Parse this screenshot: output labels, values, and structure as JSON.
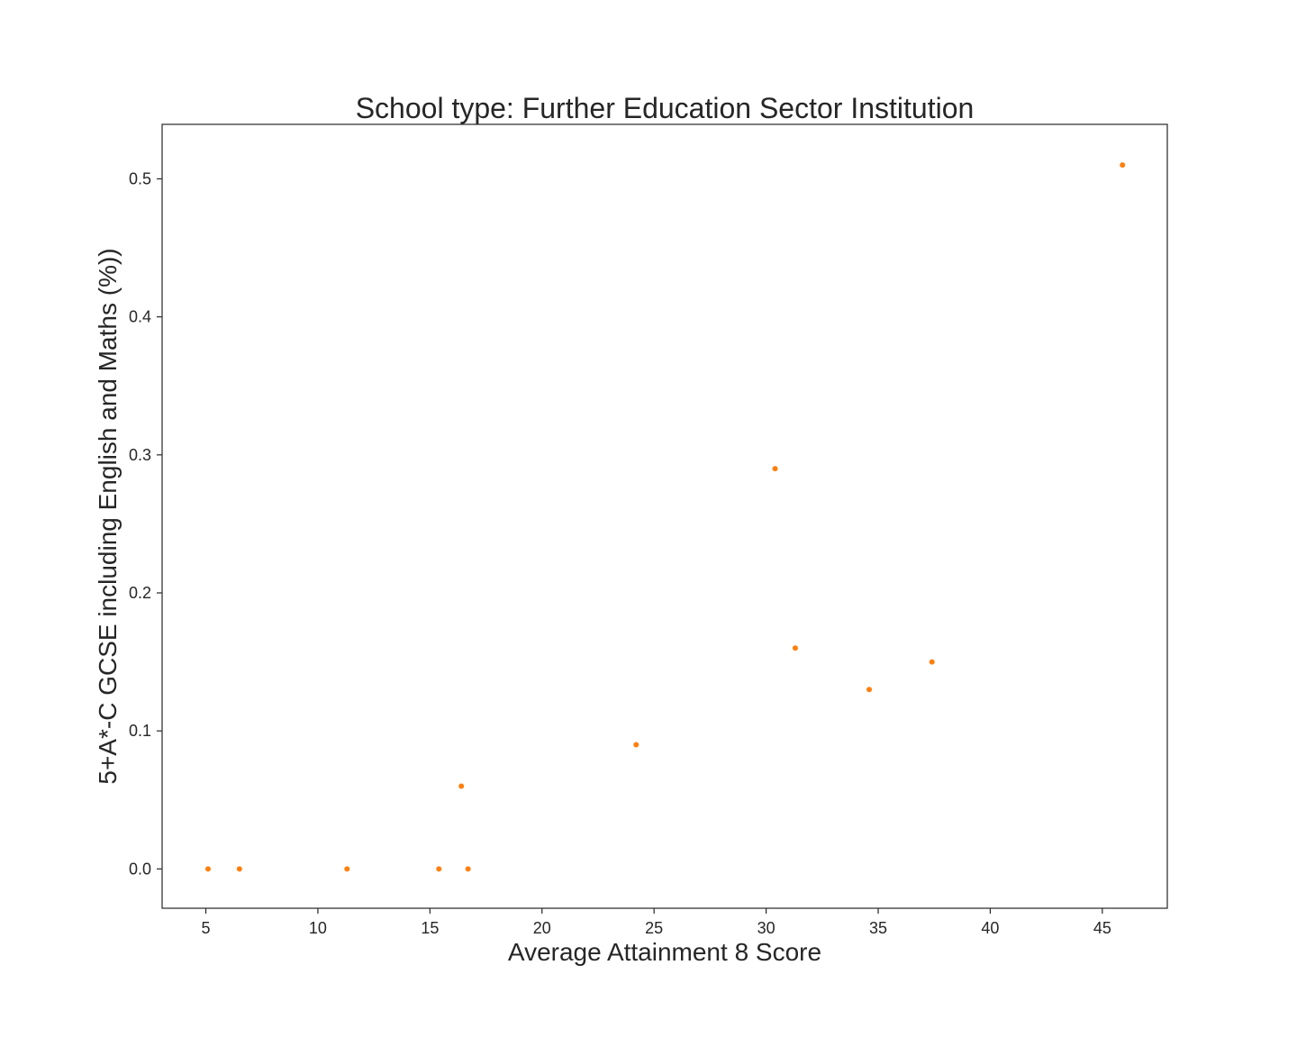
{
  "chart_data": {
    "type": "scatter",
    "title": "School type: Further Education Sector Institution",
    "xlabel": "Average Attainment 8 Score",
    "ylabel": "5+A*-C GCSE including English and Maths (%))",
    "xlim": [
      3.05,
      47.9
    ],
    "ylim": [
      -0.0285,
      0.5395
    ],
    "xticks": [
      5,
      10,
      15,
      20,
      25,
      30,
      35,
      40,
      45
    ],
    "xtick_labels": [
      "5",
      "10",
      "15",
      "20",
      "25",
      "30",
      "35",
      "40",
      "45"
    ],
    "yticks": [
      0.0,
      0.1,
      0.2,
      0.3,
      0.4,
      0.5
    ],
    "ytick_labels": [
      "0.0",
      "0.1",
      "0.2",
      "0.3",
      "0.4",
      "0.5"
    ],
    "grid": false,
    "marker_color": "#ff7f0e",
    "series": [
      {
        "points": [
          {
            "x": 5.1,
            "y": 0.0
          },
          {
            "x": 6.5,
            "y": 0.0
          },
          {
            "x": 11.3,
            "y": 0.0
          },
          {
            "x": 15.4,
            "y": 0.0
          },
          {
            "x": 16.7,
            "y": 0.0
          },
          {
            "x": 16.4,
            "y": 0.06
          },
          {
            "x": 24.2,
            "y": 0.09
          },
          {
            "x": 30.4,
            "y": 0.29
          },
          {
            "x": 31.3,
            "y": 0.16
          },
          {
            "x": 34.6,
            "y": 0.13
          },
          {
            "x": 37.4,
            "y": 0.15
          },
          {
            "x": 45.9,
            "y": 0.51
          }
        ]
      }
    ]
  }
}
